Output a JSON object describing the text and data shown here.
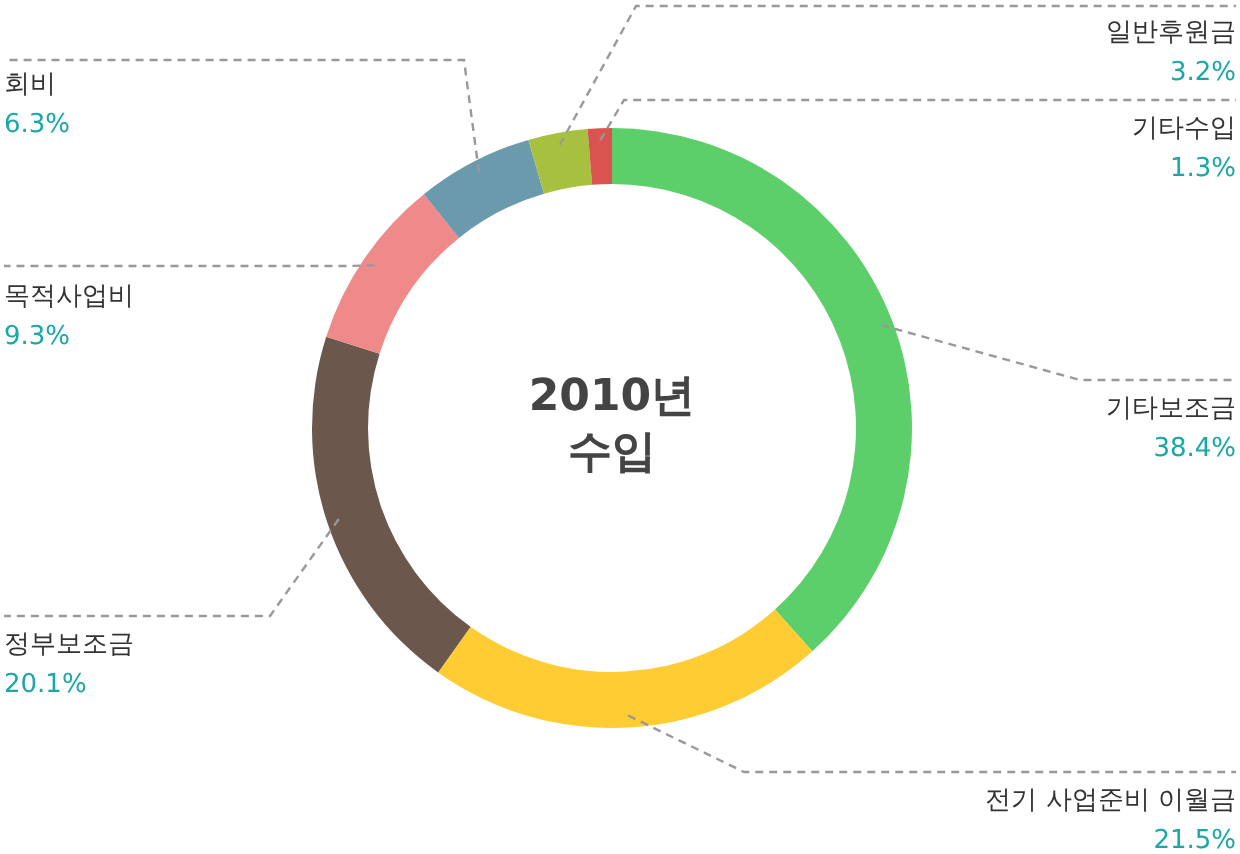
{
  "chart_data": {
    "type": "donut",
    "title": "2010년 수입",
    "categories": [
      "기타보조금",
      "전기 사업준비 이월금",
      "정부보조금",
      "목적사업비",
      "회비",
      "일반후원금",
      "기타수입"
    ],
    "values": [
      38.4,
      21.5,
      20.1,
      9.3,
      6.3,
      3.2,
      1.3
    ],
    "value_labels": [
      "38.4%",
      "21.5%",
      "20.1%",
      "9.3%",
      "6.3%",
      "3.2%",
      "1.3%"
    ],
    "colors": [
      "#5dcf6a",
      "#ffcc33",
      "#6b574c",
      "#f08a8a",
      "#6a9aac",
      "#a8c040",
      "#d9534f"
    ]
  }
}
